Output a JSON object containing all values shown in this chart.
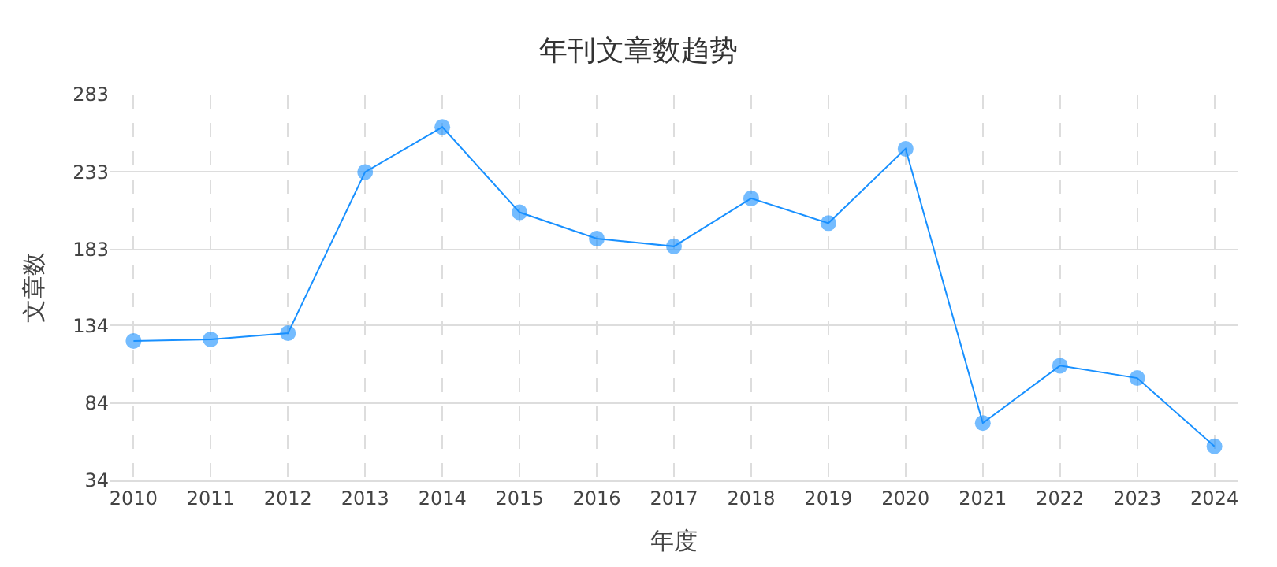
{
  "chart_data": {
    "type": "line",
    "title": "年刊文章数趋势",
    "xlabel": "年度",
    "ylabel": "文章数",
    "categories": [
      "2010",
      "2011",
      "2012",
      "2013",
      "2014",
      "2015",
      "2016",
      "2017",
      "2018",
      "2019",
      "2020",
      "2021",
      "2022",
      "2023",
      "2024"
    ],
    "series": [
      {
        "color": "#1890ff",
        "values": [
          124,
          125,
          129,
          233,
          262,
          207,
          190,
          185,
          216,
          200,
          248,
          71,
          108,
          100,
          56
        ]
      }
    ],
    "ylim": [
      34,
      283
    ],
    "yticks": [
      34,
      84,
      134,
      183,
      233,
      283
    ],
    "grid": true,
    "marker": "circle",
    "line_style": "solid"
  }
}
